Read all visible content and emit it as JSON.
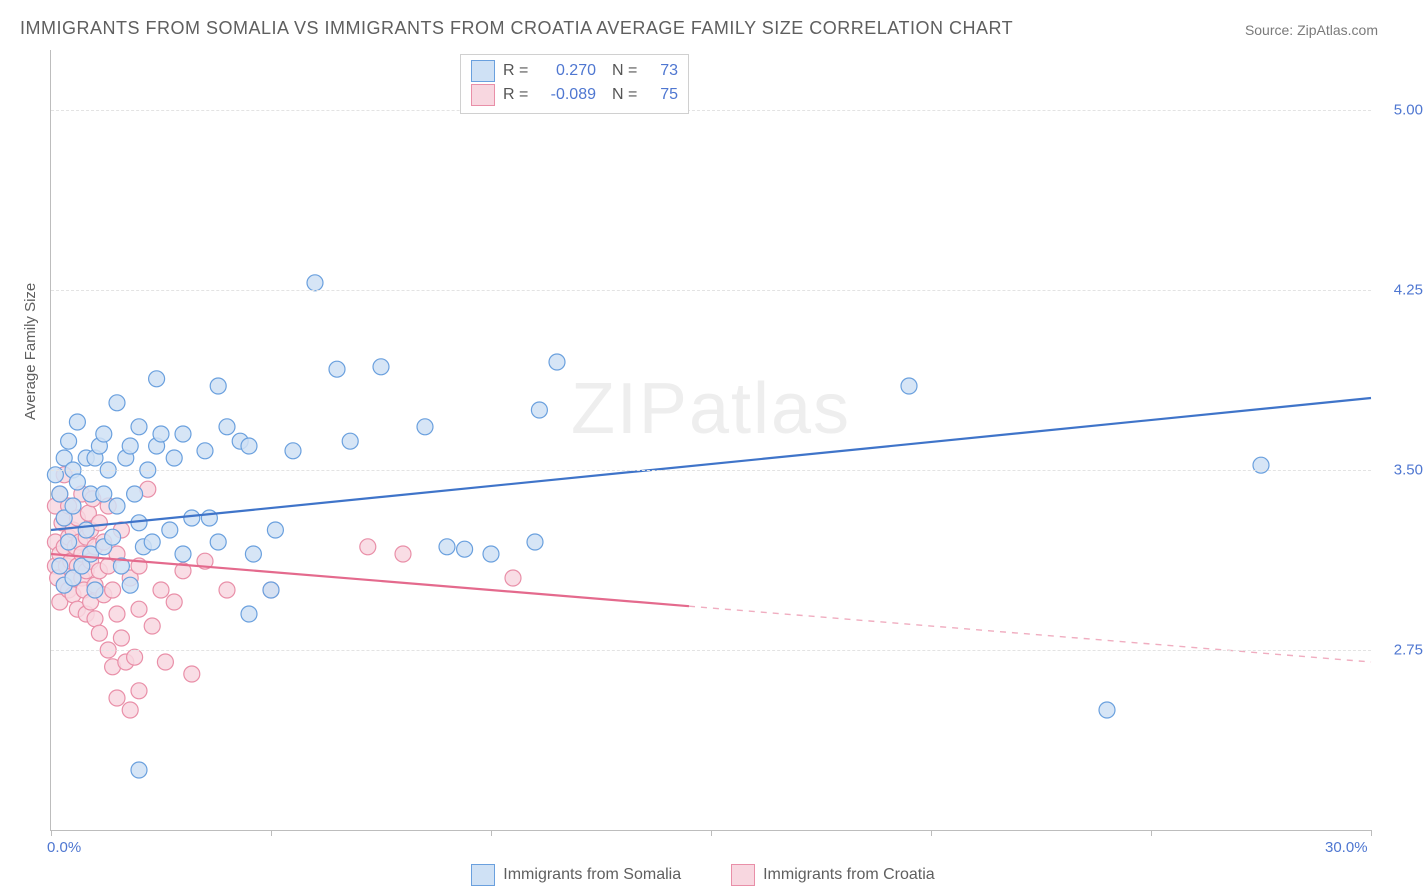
{
  "title": "IMMIGRANTS FROM SOMALIA VS IMMIGRANTS FROM CROATIA AVERAGE FAMILY SIZE CORRELATION CHART",
  "source": "Source: ZipAtlas.com",
  "y_axis_title": "Average Family Size",
  "watermark_bold": "ZIP",
  "watermark_rest": "atlas",
  "chart": {
    "type": "scatter-correlation",
    "xlim": [
      0,
      30
    ],
    "ylim": [
      2.0,
      5.25
    ],
    "x_tick_marks_at": [
      0,
      5,
      10,
      15,
      20,
      25,
      30
    ],
    "x_ticks": [
      {
        "v": 0.0,
        "label": "0.0%"
      },
      {
        "v": 30.0,
        "label": "30.0%"
      }
    ],
    "y_ticks": [
      {
        "v": 2.75,
        "label": "2.75"
      },
      {
        "v": 3.5,
        "label": "3.50"
      },
      {
        "v": 4.25,
        "label": "4.25"
      },
      {
        "v": 5.0,
        "label": "5.00"
      }
    ],
    "grid_color": "#e3e3e3",
    "background_color": "#ffffff",
    "marker_radius": 8,
    "marker_stroke_width": 1.2,
    "trend_line_width": 2.2,
    "series": [
      {
        "name": "Immigrants from Somalia",
        "fill": "#cfe1f5",
        "stroke": "#6aa0de",
        "line_color": "#3f74c9",
        "R": "0.270",
        "N": "73",
        "trend": {
          "x1": 0.0,
          "y1": 3.25,
          "x2": 30.0,
          "y2": 3.8
        },
        "solid_until_x": 30.0,
        "points": [
          [
            0.1,
            3.48
          ],
          [
            0.2,
            3.4
          ],
          [
            0.2,
            3.1
          ],
          [
            0.3,
            3.02
          ],
          [
            0.3,
            3.3
          ],
          [
            0.3,
            3.55
          ],
          [
            0.4,
            3.62
          ],
          [
            0.4,
            3.2
          ],
          [
            0.5,
            3.05
          ],
          [
            0.5,
            3.35
          ],
          [
            0.5,
            3.5
          ],
          [
            0.6,
            3.45
          ],
          [
            0.6,
            3.7
          ],
          [
            0.7,
            3.1
          ],
          [
            0.8,
            3.55
          ],
          [
            0.8,
            3.25
          ],
          [
            0.9,
            3.4
          ],
          [
            0.9,
            3.15
          ],
          [
            1.0,
            3.55
          ],
          [
            1.0,
            3.0
          ],
          [
            1.1,
            3.6
          ],
          [
            1.2,
            3.18
          ],
          [
            1.2,
            3.65
          ],
          [
            1.2,
            3.4
          ],
          [
            1.3,
            3.5
          ],
          [
            1.4,
            3.22
          ],
          [
            1.5,
            3.78
          ],
          [
            1.5,
            3.35
          ],
          [
            1.6,
            3.1
          ],
          [
            1.7,
            3.55
          ],
          [
            1.8,
            3.6
          ],
          [
            1.8,
            3.02
          ],
          [
            1.9,
            3.4
          ],
          [
            2.0,
            3.28
          ],
          [
            2.0,
            3.68
          ],
          [
            2.1,
            3.18
          ],
          [
            2.2,
            3.5
          ],
          [
            2.3,
            3.2
          ],
          [
            2.4,
            3.6
          ],
          [
            2.5,
            3.65
          ],
          [
            2.7,
            3.25
          ],
          [
            2.8,
            3.55
          ],
          [
            3.0,
            3.15
          ],
          [
            3.0,
            3.65
          ],
          [
            3.2,
            3.3
          ],
          [
            3.5,
            3.58
          ],
          [
            3.6,
            3.3
          ],
          [
            3.8,
            3.2
          ],
          [
            4.0,
            3.68
          ],
          [
            4.3,
            3.62
          ],
          [
            4.5,
            2.9
          ],
          [
            4.6,
            3.15
          ],
          [
            5.0,
            3.0
          ],
          [
            5.1,
            3.25
          ],
          [
            5.5,
            3.58
          ],
          [
            6.0,
            4.28
          ],
          [
            6.5,
            3.92
          ],
          [
            3.8,
            3.85
          ],
          [
            4.5,
            3.6
          ],
          [
            6.8,
            3.62
          ],
          [
            7.5,
            3.93
          ],
          [
            8.5,
            3.68
          ],
          [
            9.0,
            3.18
          ],
          [
            9.4,
            3.17
          ],
          [
            10.0,
            3.15
          ],
          [
            11.5,
            3.95
          ],
          [
            11.0,
            3.2
          ],
          [
            11.1,
            3.75
          ],
          [
            19.5,
            3.85
          ],
          [
            24.0,
            2.5
          ],
          [
            27.5,
            3.52
          ],
          [
            2.0,
            2.25
          ],
          [
            2.4,
            3.88
          ]
        ]
      },
      {
        "name": "Immigrants from Croatia",
        "fill": "#f8d7e0",
        "stroke": "#e98fa8",
        "line_color": "#e46a8d",
        "R": "-0.089",
        "N": "75",
        "trend": {
          "x1": 0.0,
          "y1": 3.15,
          "x2": 30.0,
          "y2": 2.7
        },
        "solid_until_x": 14.5,
        "points": [
          [
            0.1,
            3.2
          ],
          [
            0.1,
            3.1
          ],
          [
            0.1,
            3.35
          ],
          [
            0.15,
            3.05
          ],
          [
            0.2,
            3.4
          ],
          [
            0.2,
            3.15
          ],
          [
            0.2,
            2.95
          ],
          [
            0.25,
            3.28
          ],
          [
            0.3,
            3.18
          ],
          [
            0.3,
            3.02
          ],
          [
            0.3,
            3.3
          ],
          [
            0.35,
            3.1
          ],
          [
            0.4,
            3.22
          ],
          [
            0.4,
            3.0
          ],
          [
            0.4,
            3.35
          ],
          [
            0.45,
            3.12
          ],
          [
            0.5,
            3.25
          ],
          [
            0.5,
            3.05
          ],
          [
            0.5,
            2.98
          ],
          [
            0.55,
            3.18
          ],
          [
            0.6,
            3.1
          ],
          [
            0.6,
            3.3
          ],
          [
            0.6,
            2.92
          ],
          [
            0.65,
            3.2
          ],
          [
            0.7,
            3.05
          ],
          [
            0.7,
            3.15
          ],
          [
            0.7,
            3.4
          ],
          [
            0.75,
            3.0
          ],
          [
            0.8,
            3.22
          ],
          [
            0.8,
            3.08
          ],
          [
            0.8,
            2.9
          ],
          [
            0.85,
            3.32
          ],
          [
            0.9,
            3.12
          ],
          [
            0.9,
            3.25
          ],
          [
            0.9,
            2.95
          ],
          [
            0.95,
            3.38
          ],
          [
            1.0,
            3.18
          ],
          [
            1.0,
            3.02
          ],
          [
            1.0,
            2.88
          ],
          [
            1.1,
            3.28
          ],
          [
            1.1,
            3.08
          ],
          [
            1.1,
            2.82
          ],
          [
            1.2,
            3.2
          ],
          [
            1.2,
            2.98
          ],
          [
            1.3,
            3.1
          ],
          [
            1.3,
            3.35
          ],
          [
            1.3,
            2.75
          ],
          [
            1.4,
            3.0
          ],
          [
            1.4,
            2.68
          ],
          [
            1.5,
            3.15
          ],
          [
            1.5,
            2.9
          ],
          [
            1.5,
            2.55
          ],
          [
            1.6,
            2.8
          ],
          [
            1.6,
            3.25
          ],
          [
            1.7,
            2.7
          ],
          [
            1.8,
            2.5
          ],
          [
            1.8,
            3.05
          ],
          [
            1.9,
            2.72
          ],
          [
            2.0,
            3.1
          ],
          [
            2.0,
            2.58
          ],
          [
            2.0,
            2.92
          ],
          [
            2.2,
            3.42
          ],
          [
            2.3,
            2.85
          ],
          [
            2.5,
            3.0
          ],
          [
            2.6,
            2.7
          ],
          [
            2.8,
            2.95
          ],
          [
            3.0,
            3.08
          ],
          [
            3.2,
            2.65
          ],
          [
            3.5,
            3.12
          ],
          [
            4.0,
            3.0
          ],
          [
            5.0,
            3.0
          ],
          [
            7.2,
            3.18
          ],
          [
            8.0,
            3.15
          ],
          [
            10.5,
            3.05
          ],
          [
            0.3,
            3.48
          ]
        ]
      }
    ]
  },
  "legend_bottom": [
    {
      "label": "Immigrants from Somalia",
      "fill": "#cfe1f5",
      "stroke": "#6aa0de"
    },
    {
      "label": "Immigrants from Croatia",
      "fill": "#f8d7e0",
      "stroke": "#e98fa8"
    }
  ]
}
